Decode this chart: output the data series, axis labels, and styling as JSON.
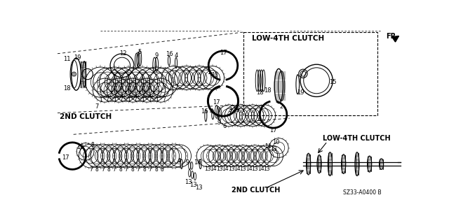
{
  "background_color": "#ffffff",
  "labels": {
    "low4th_top": "LOW-4TH CLUTCH",
    "low4th_bottom": "LOW-4TH CLUTCH",
    "nd2_top": "2ND CLUTCH",
    "nd2_bottom": "2ND CLUTCH",
    "fr": "FR.",
    "diagram_id": "SZ33-A0400 B"
  },
  "figsize": [
    6.4,
    3.19
  ],
  "dpi": 100
}
